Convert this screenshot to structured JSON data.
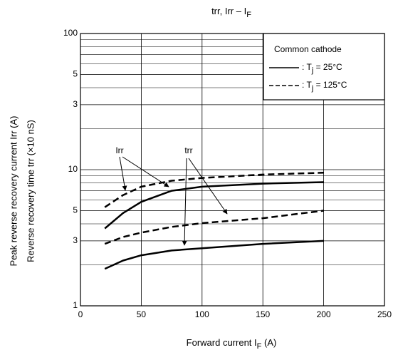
{
  "chart_data": {
    "type": "line",
    "title": "trr, Irr – IF",
    "x_label": "Forward current   IF   (A)",
    "y_label": "Peak reverse recovery current   Irr   (A)",
    "y_label_2": "Reverse recovery time   trr   (×10 nS)",
    "x": [
      20,
      35,
      50,
      75,
      100,
      150,
      200
    ],
    "series": [
      {
        "style": "dashed",
        "color": "#000000",
        "values": [
          5.3,
          6.5,
          7.5,
          8.3,
          8.7,
          9.2,
          9.5
        ]
      },
      {
        "style": "solid",
        "color": "#000000",
        "values": [
          3.7,
          4.8,
          5.8,
          7.0,
          7.5,
          7.9,
          8.1
        ]
      },
      {
        "style": "dashed",
        "color": "#000000",
        "values": [
          2.85,
          3.2,
          3.45,
          3.8,
          4.05,
          4.4,
          5.0
        ]
      },
      {
        "style": "solid",
        "color": "#000000",
        "values": [
          1.87,
          2.15,
          2.35,
          2.55,
          2.65,
          2.85,
          3.0
        ]
      }
    ],
    "annotations": [
      "Irr",
      "trr"
    ],
    "legend": {
      "title": "Common cathode",
      "position": "upper right",
      "entries": [
        {
          "label": ": Tj = 25°C",
          "style": "solid"
        },
        {
          "label": ": Tj = 125°C",
          "style": "dashed"
        }
      ]
    },
    "xlim": [
      0,
      250
    ],
    "xticks": [
      0,
      50,
      100,
      150,
      200,
      250
    ],
    "ylim": [
      1,
      100
    ],
    "yscale": "log",
    "yticks": [
      1,
      3,
      5,
      10,
      {
        "value": 30,
        "label": "3"
      },
      {
        "value": 50,
        "label": "5"
      },
      100
    ],
    "yminor_ticks": [
      2,
      4,
      6,
      7,
      8,
      9,
      20,
      40,
      60,
      70,
      80,
      90
    ],
    "grid": true
  }
}
